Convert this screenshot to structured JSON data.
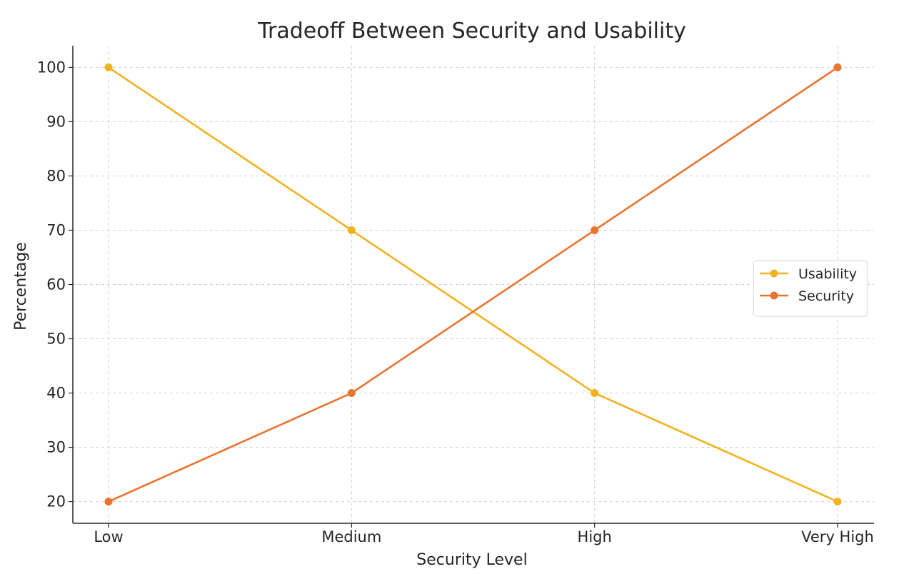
{
  "chart_data": {
    "type": "line",
    "title": "Tradeoff Between Security and Usability",
    "xlabel": "Security Level",
    "ylabel": "Percentage",
    "categories": [
      "Low",
      "Medium",
      "High",
      "Very High"
    ],
    "ylim": [
      16,
      104
    ],
    "yticks": [
      20,
      30,
      40,
      50,
      60,
      70,
      80,
      90,
      100
    ],
    "grid": true,
    "legend_position": "center-right",
    "series": [
      {
        "name": "Usability",
        "values": [
          100,
          70,
          40,
          20
        ],
        "color": "#f2b21f"
      },
      {
        "name": "Security",
        "values": [
          20,
          40,
          70,
          100
        ],
        "color": "#ea7330"
      }
    ]
  }
}
